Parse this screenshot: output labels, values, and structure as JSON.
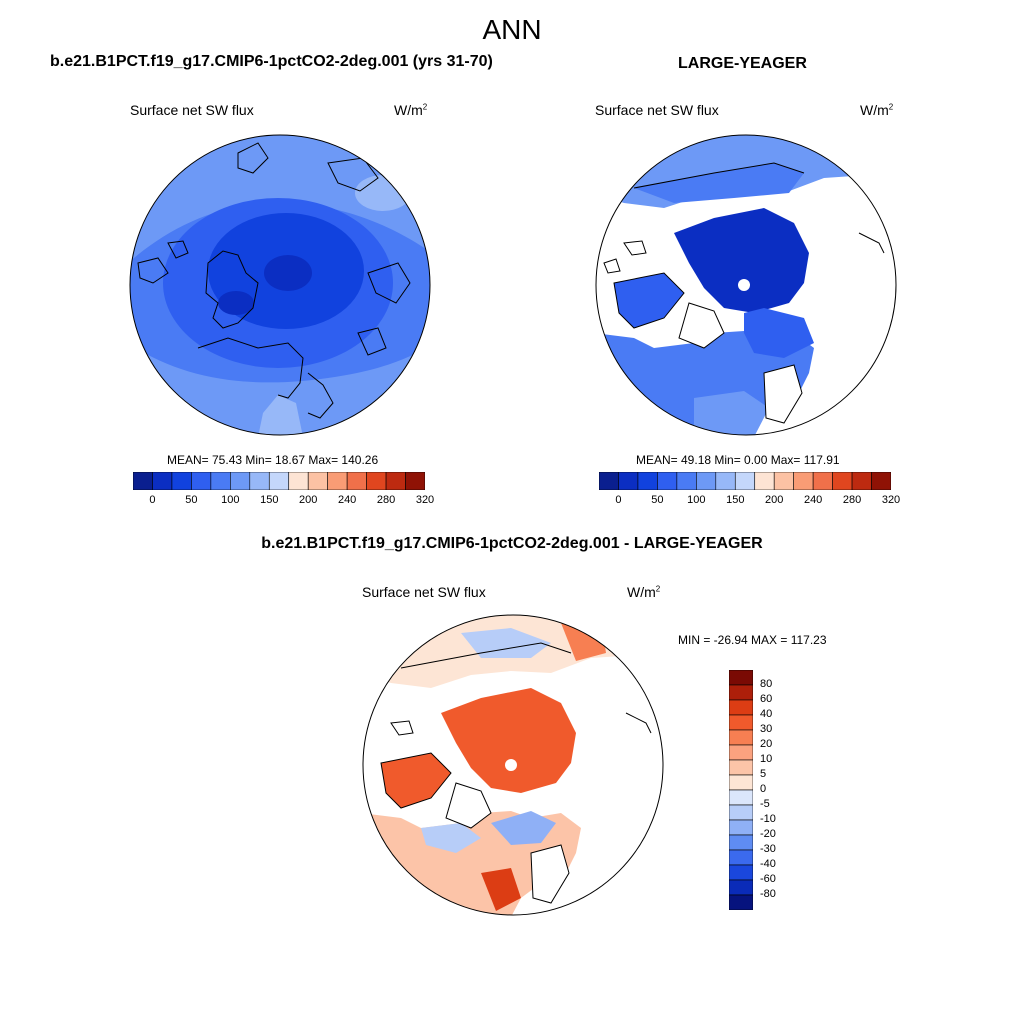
{
  "title": "ANN",
  "panels": [
    {
      "case_title": "b.e21.B1PCT.f19_g17.CMIP6-1pctCO2-2deg.001 (yrs 31-70)",
      "variable": "Surface net SW flux",
      "units_base": "W/m",
      "units_exp": "2",
      "stats_text": "MEAN=  75.43  Min=  18.67  Max= 140.26",
      "mean": 75.43,
      "min": 18.67,
      "max": 140.26
    },
    {
      "case_title": "LARGE-YEAGER",
      "variable": "Surface net SW flux",
      "units_base": "W/m",
      "units_exp": "2",
      "stats_text": "MEAN=  49.18  Min=   0.00  Max= 117.91",
      "mean": 49.18,
      "min": 0.0,
      "max": 117.91
    }
  ],
  "abs_colorbar": {
    "colors": [
      "#0a1f8f",
      "#0b2ec2",
      "#1142de",
      "#2f5ff0",
      "#4a7bf4",
      "#6d99f6",
      "#97b8f8",
      "#c4d7fb",
      "#fde4d4",
      "#fcc2a4",
      "#f99c75",
      "#f0704a",
      "#e0461f",
      "#bd2a10",
      "#8f1205"
    ],
    "ticks": [
      "0",
      "50",
      "100",
      "150",
      "200",
      "240",
      "280",
      "320"
    ]
  },
  "diff_panel": {
    "case_title": "b.e21.B1PCT.f19_g17.CMIP6-1pctCO2-2deg.001 - LARGE-YEAGER",
    "variable": "Surface net SW flux",
    "units_base": "W/m",
    "units_exp": "2",
    "stats_text": "MIN = -26.94 MAX = 117.23",
    "min": -26.94,
    "max": 117.23
  },
  "diff_colorbar": {
    "colors": [
      "#7a0a04",
      "#ad1f0a",
      "#dc3d14",
      "#f05a2c",
      "#f77f52",
      "#fba27f",
      "#fcc4a8",
      "#fde5d5",
      "#dbe6fb",
      "#b7cdf8",
      "#8fb0f6",
      "#5f8cf2",
      "#3b6aee",
      "#1a47dd",
      "#0a2bb8",
      "#06137e"
    ],
    "ticks": [
      "80",
      "60",
      "40",
      "30",
      "20",
      "10",
      "5",
      "0",
      "-5",
      "-10",
      "-20",
      "-30",
      "-40",
      "-60",
      "-80"
    ]
  }
}
